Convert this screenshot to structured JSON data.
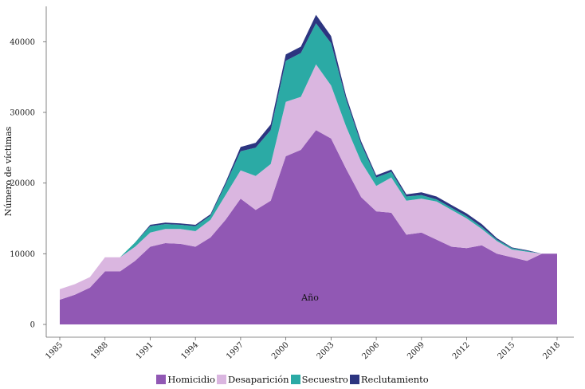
{
  "chart_data": {
    "type": "area",
    "stacked": true,
    "title": "",
    "xlabel": "Año",
    "ylabel": "Número de víctimas",
    "xlim": [
      1985,
      2018
    ],
    "ylim": [
      0,
      45000
    ],
    "xticks": [
      1985,
      1988,
      1991,
      1994,
      1997,
      2000,
      2003,
      2006,
      2009,
      2012,
      2015,
      2018
    ],
    "yticks": [
      0,
      10000,
      20000,
      30000,
      40000
    ],
    "grid": false,
    "legend_position": "bottom",
    "x": [
      1985,
      1986,
      1987,
      1988,
      1989,
      1990,
      1991,
      1992,
      1993,
      1994,
      1995,
      1996,
      1997,
      1998,
      1999,
      2000,
      2001,
      2002,
      2003,
      2004,
      2005,
      2006,
      2007,
      2008,
      2009,
      2010,
      2011,
      2012,
      2013,
      2014,
      2015,
      2016,
      2017,
      2018
    ],
    "series": [
      {
        "name": "Homicidio",
        "color": "#9158b4",
        "values": [
          3500,
          4200,
          5200,
          7500,
          7500,
          9000,
          11000,
          11500,
          11400,
          11000,
          12300,
          14800,
          17800,
          16200,
          17500,
          23800,
          24700,
          27500,
          26300,
          22000,
          18000,
          16000,
          15800,
          12700,
          13000,
          12000,
          11000,
          10800,
          11200,
          10000,
          9500,
          9000,
          10000,
          10000
        ]
      },
      {
        "name": "Desaparición",
        "color": "#dab6e0",
        "values": [
          1500,
          1500,
          1500,
          2000,
          2000,
          2000,
          2000,
          2000,
          2100,
          2200,
          2500,
          3500,
          4000,
          4800,
          5200,
          7700,
          7500,
          9300,
          7500,
          6000,
          5000,
          3600,
          5000,
          4800,
          4800,
          5400,
          5200,
          4200,
          2300,
          1800,
          1100,
          1300,
          0,
          0
        ]
      },
      {
        "name": "Secuestro",
        "color": "#2baaa5",
        "values": [
          0,
          0,
          0,
          0,
          0,
          600,
          900,
          700,
          600,
          700,
          600,
          1500,
          2700,
          4000,
          4800,
          5800,
          6200,
          5800,
          6000,
          3800,
          2500,
          1200,
          800,
          600,
          500,
          300,
          300,
          300,
          300,
          200,
          200,
          100,
          0,
          0
        ]
      },
      {
        "name": "Reclutamiento",
        "color": "#2c3580",
        "values": [
          0,
          0,
          0,
          0,
          0,
          0,
          200,
          200,
          200,
          200,
          200,
          300,
          600,
          700,
          800,
          900,
          900,
          1200,
          1000,
          500,
          400,
          300,
          300,
          300,
          400,
          400,
          400,
          400,
          400,
          200,
          100,
          100,
          0,
          0
        ]
      }
    ]
  }
}
